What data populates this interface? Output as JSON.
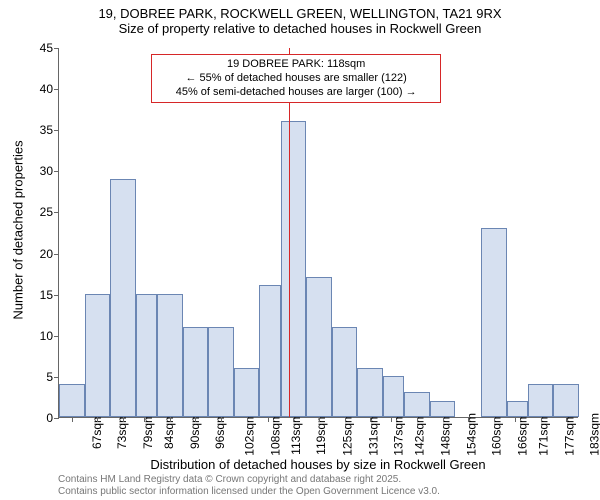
{
  "chart": {
    "type": "histogram",
    "title_main": "19, DOBREE PARK, ROCKWELL GREEN, WELLINGTON, TA21 9RX",
    "title_sub": "Size of property relative to detached houses in Rockwell Green",
    "title_fontsize": 13,
    "xlabel": "Distribution of detached houses by size in Rockwell Green",
    "ylabel": "Number of detached properties",
    "label_fontsize": 13,
    "tick_fontsize": 12,
    "background_color": "#ffffff",
    "axis_color": "#666666",
    "bar_fill": "#d6e0f0",
    "bar_stroke": "#6b86b3",
    "refline_color": "#d62728",
    "annot_border": "#d62728",
    "ylim": [
      0,
      45
    ],
    "yticks": [
      0,
      5,
      10,
      15,
      20,
      25,
      30,
      35,
      40,
      45
    ],
    "xlim": [
      64,
      186
    ],
    "xticks": [
      67,
      73,
      79,
      84,
      90,
      96,
      102,
      108,
      113,
      119,
      125,
      131,
      137,
      142,
      148,
      154,
      160,
      166,
      171,
      177,
      183
    ],
    "xtick_suffix": "sqm",
    "bars": [
      {
        "x0": 64,
        "x1": 70,
        "y": 4
      },
      {
        "x0": 70,
        "x1": 76,
        "y": 15
      },
      {
        "x0": 76,
        "x1": 82,
        "y": 29
      },
      {
        "x0": 82,
        "x1": 87,
        "y": 15
      },
      {
        "x0": 87,
        "x1": 93,
        "y": 15
      },
      {
        "x0": 93,
        "x1": 99,
        "y": 11
      },
      {
        "x0": 99,
        "x1": 105,
        "y": 11
      },
      {
        "x0": 105,
        "x1": 111,
        "y": 6
      },
      {
        "x0": 111,
        "x1": 116,
        "y": 16
      },
      {
        "x0": 116,
        "x1": 122,
        "y": 36
      },
      {
        "x0": 122,
        "x1": 128,
        "y": 17
      },
      {
        "x0": 128,
        "x1": 134,
        "y": 11
      },
      {
        "x0": 134,
        "x1": 140,
        "y": 6
      },
      {
        "x0": 140,
        "x1": 145,
        "y": 5
      },
      {
        "x0": 145,
        "x1": 151,
        "y": 3
      },
      {
        "x0": 151,
        "x1": 157,
        "y": 2
      },
      {
        "x0": 157,
        "x1": 163,
        "y": 0
      },
      {
        "x0": 163,
        "x1": 169,
        "y": 23
      },
      {
        "x0": 169,
        "x1": 174,
        "y": 2
      },
      {
        "x0": 174,
        "x1": 180,
        "y": 4
      },
      {
        "x0": 180,
        "x1": 186,
        "y": 4
      }
    ],
    "reference_x": 118,
    "annotation": {
      "line1": "19 DOBREE PARK: 118sqm",
      "line2": "← 55% of detached houses are smaller (122)",
      "line3": "45% of semi-detached houses are larger (100) →",
      "fontsize": 11
    },
    "attribution": {
      "line1": "Contains HM Land Registry data © Crown copyright and database right 2025.",
      "line2": "Contains public sector information licensed under the Open Government Licence v3.0."
    }
  }
}
